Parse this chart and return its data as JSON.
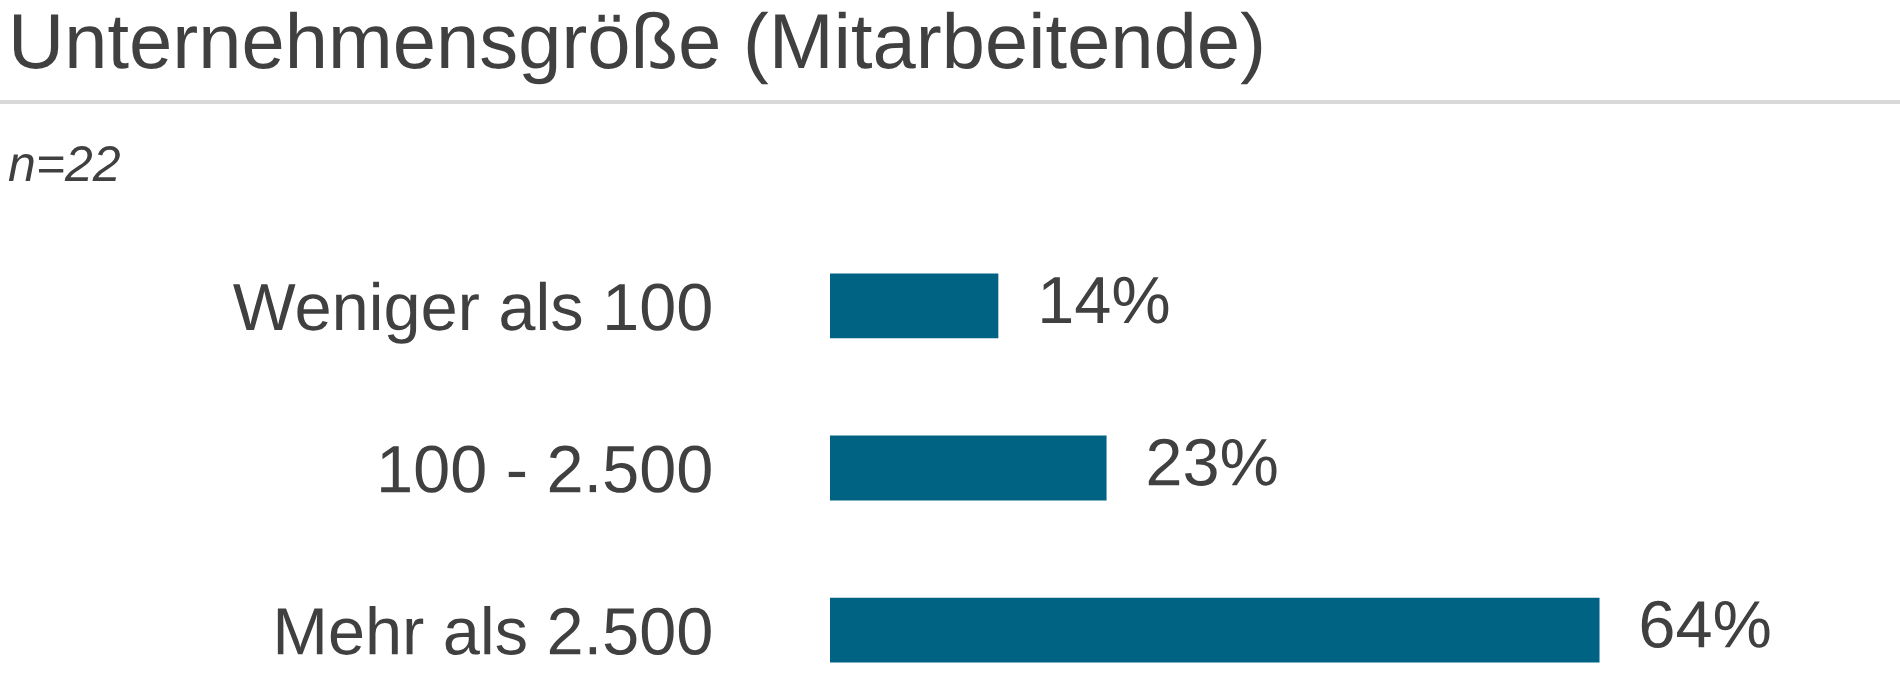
{
  "chart_data": {
    "type": "bar",
    "orientation": "horizontal",
    "title": "Unternehmensgröße (Mitarbeitende)",
    "subtitle": "n=22",
    "categories": [
      "Weniger als 100",
      "100 - 2.500",
      "Mehr als 2.500"
    ],
    "values": [
      14,
      23,
      64
    ],
    "color": "#006384",
    "value_labels": [
      "14%",
      "23%",
      "64%"
    ],
    "grid": false,
    "legend": false
  }
}
